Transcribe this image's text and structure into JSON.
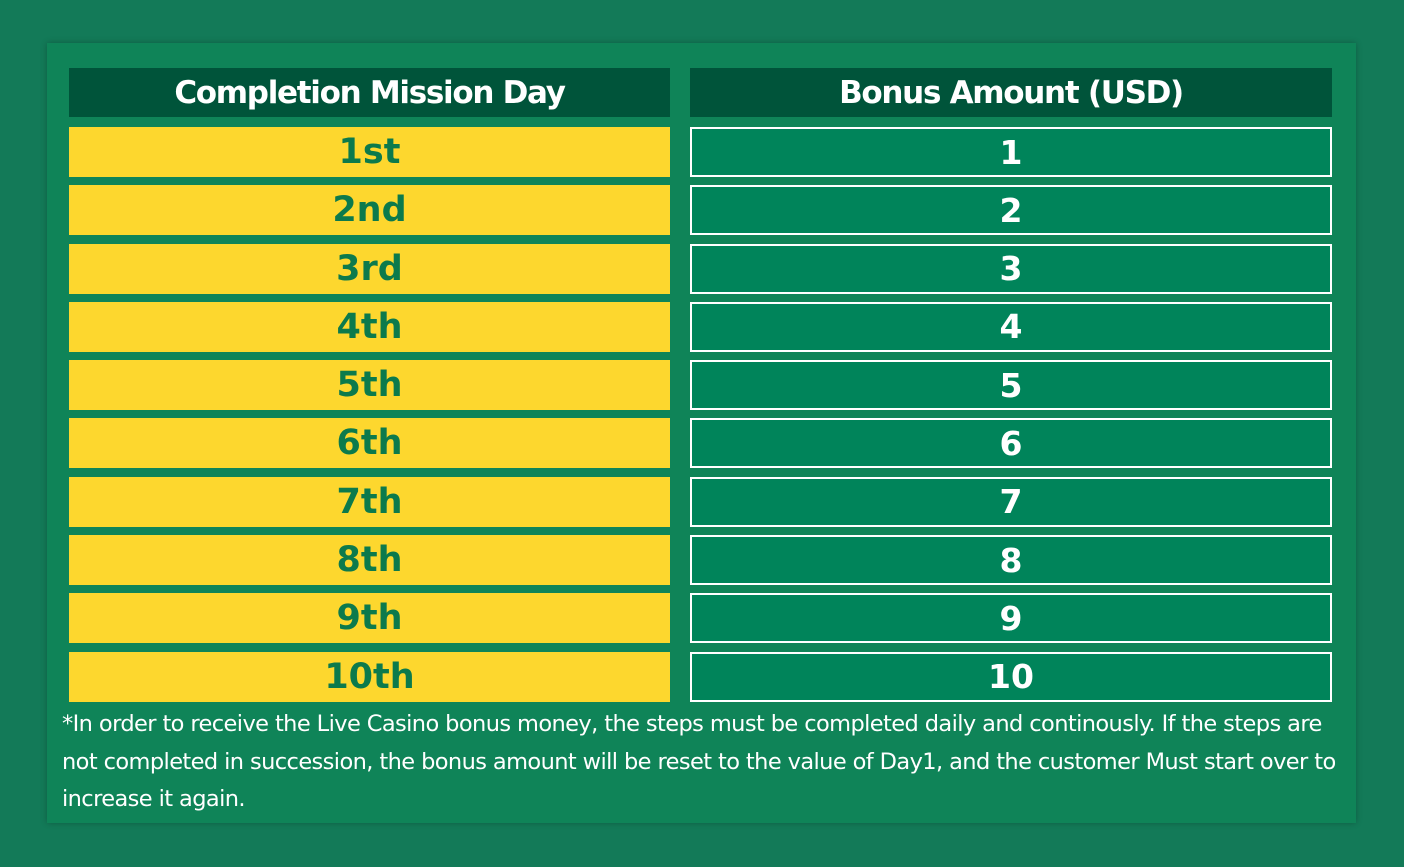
{
  "table": {
    "day_header": "Completion Mission Day",
    "bonus_header": "Bonus Amount (USD)",
    "days": [
      "1st",
      "2nd",
      "3rd",
      "4th",
      "5th",
      "6th",
      "7th",
      "8th",
      "9th",
      "10th"
    ],
    "bonuses": [
      "1",
      "2",
      "3",
      "4",
      "5",
      "6",
      "7",
      "8",
      "9",
      "10"
    ]
  },
  "footnote": "*In order to receive the Live Casino bonus money, the steps must be completed daily and continously. If the steps are not completed in succession, the bonus amount will be reset to the value of Day1, and the customer Must start over to increase it again.",
  "colors": {
    "background": "#137a58",
    "panel": "#0f8458",
    "header": "#00543a",
    "day_cell": "#fdd72e",
    "day_text": "#0c7a4c",
    "amount_cell": "#00845a",
    "border": "#ffffff"
  }
}
